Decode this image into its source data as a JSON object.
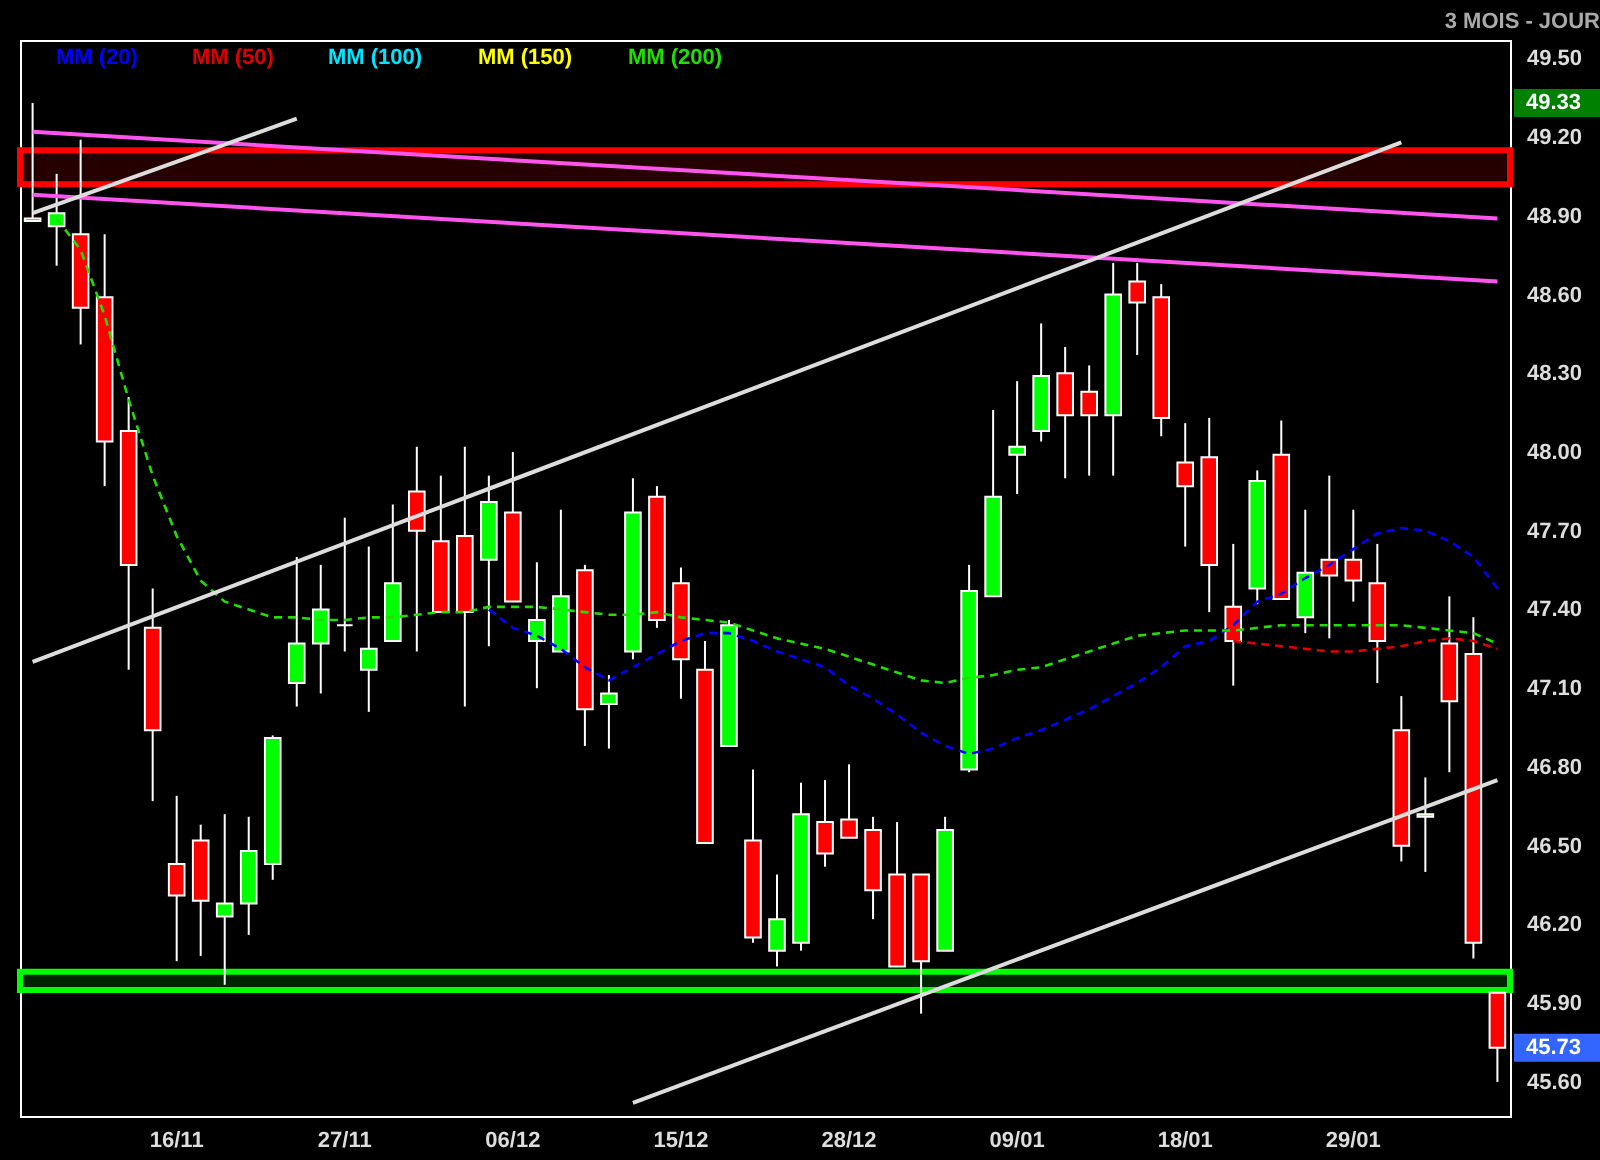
{
  "chart_data": {
    "type": "candlestick",
    "subtitle": "3 MOIS - JOUR",
    "categories": [
      null,
      null,
      null,
      null,
      null,
      null,
      "16/11",
      null,
      null,
      null,
      null,
      null,
      null,
      "27/11",
      null,
      null,
      null,
      null,
      null,
      null,
      "06/12",
      null,
      null,
      null,
      null,
      null,
      null,
      "15/12",
      null,
      null,
      null,
      null,
      null,
      null,
      "28/12",
      null,
      null,
      null,
      null,
      null,
      null,
      "09/01",
      null,
      null,
      null,
      null,
      null,
      null,
      "18/01",
      null,
      null,
      null,
      null,
      null,
      null,
      "29/01",
      null,
      null,
      null,
      null,
      null,
      null
    ],
    "ohlc": [
      [
        48.89,
        49.33,
        48.88,
        48.88
      ],
      [
        48.86,
        49.06,
        48.71,
        48.91
      ],
      [
        48.83,
        49.19,
        48.41,
        48.55
      ],
      [
        48.59,
        48.83,
        47.87,
        48.04
      ],
      [
        48.08,
        48.21,
        47.17,
        47.57
      ],
      [
        47.33,
        47.48,
        46.67,
        46.94
      ],
      [
        46.43,
        46.69,
        46.06,
        46.31
      ],
      [
        46.52,
        46.58,
        46.08,
        46.29
      ],
      [
        46.23,
        46.62,
        45.97,
        46.28
      ],
      [
        46.28,
        46.61,
        46.16,
        46.48
      ],
      [
        46.43,
        46.92,
        46.37,
        46.91
      ],
      [
        47.12,
        47.6,
        47.03,
        47.27
      ],
      [
        47.27,
        47.57,
        47.08,
        47.4
      ],
      [
        47.34,
        47.75,
        47.24,
        47.34
      ],
      [
        47.17,
        47.64,
        47.01,
        47.25
      ],
      [
        47.28,
        47.8,
        47.28,
        47.5
      ],
      [
        47.85,
        48.02,
        47.24,
        47.7
      ],
      [
        47.66,
        47.91,
        47.39,
        47.39
      ],
      [
        47.68,
        48.02,
        47.03,
        47.39
      ],
      [
        47.59,
        47.91,
        47.26,
        47.81
      ],
      [
        47.77,
        48.0,
        47.43,
        47.43
      ],
      [
        47.28,
        47.58,
        47.1,
        47.36
      ],
      [
        47.24,
        47.78,
        47.24,
        47.45
      ],
      [
        47.55,
        47.57,
        46.88,
        47.02
      ],
      [
        47.04,
        47.15,
        46.87,
        47.08
      ],
      [
        47.24,
        47.9,
        47.21,
        47.77
      ],
      [
        47.83,
        47.87,
        47.33,
        47.36
      ],
      [
        47.5,
        47.56,
        47.06,
        47.21
      ],
      [
        47.17,
        47.28,
        46.51,
        46.51
      ],
      [
        46.88,
        47.36,
        46.88,
        47.34
      ],
      [
        46.52,
        46.79,
        46.13,
        46.15
      ],
      [
        46.1,
        46.39,
        46.04,
        46.22
      ],
      [
        46.13,
        46.74,
        46.1,
        46.62
      ],
      [
        46.59,
        46.75,
        46.42,
        46.47
      ],
      [
        46.6,
        46.81,
        46.53,
        46.53
      ],
      [
        46.56,
        46.61,
        46.22,
        46.33
      ],
      [
        46.39,
        46.59,
        46.04,
        46.04
      ],
      [
        46.39,
        46.39,
        45.86,
        46.06
      ],
      [
        46.1,
        46.61,
        46.1,
        46.56
      ],
      [
        46.79,
        47.57,
        46.78,
        47.47
      ],
      [
        47.45,
        48.16,
        47.45,
        47.83
      ],
      [
        47.99,
        48.27,
        47.84,
        48.02
      ],
      [
        48.08,
        48.49,
        48.04,
        48.29
      ],
      [
        48.3,
        48.4,
        47.9,
        48.14
      ],
      [
        48.23,
        48.33,
        47.91,
        48.14
      ],
      [
        48.14,
        48.72,
        47.91,
        48.6
      ],
      [
        48.65,
        48.72,
        48.37,
        48.57
      ],
      [
        48.59,
        48.64,
        48.06,
        48.13
      ],
      [
        47.96,
        48.11,
        47.64,
        47.87
      ],
      [
        47.98,
        48.13,
        47.39,
        47.57
      ],
      [
        47.41,
        47.65,
        47.11,
        47.28
      ],
      [
        47.48,
        47.93,
        47.42,
        47.89
      ],
      [
        47.99,
        48.12,
        47.44,
        47.44
      ],
      [
        47.37,
        47.78,
        47.31,
        47.54
      ],
      [
        47.59,
        47.91,
        47.29,
        47.53
      ],
      [
        47.59,
        47.78,
        47.43,
        47.51
      ],
      [
        47.5,
        47.65,
        47.12,
        47.28
      ],
      [
        46.94,
        47.07,
        46.44,
        46.5
      ],
      [
        46.61,
        46.76,
        46.4,
        46.62
      ],
      [
        47.27,
        47.45,
        46.78,
        47.05
      ],
      [
        47.23,
        47.37,
        46.07,
        46.13
      ],
      [
        45.94,
        45.94,
        45.6,
        45.73
      ]
    ],
    "series": [
      {
        "name": "MM (20)",
        "type": "line",
        "color": "#0000ff",
        "line_style": "dashed",
        "values": [
          null,
          null,
          null,
          null,
          null,
          null,
          null,
          null,
          null,
          null,
          null,
          null,
          null,
          null,
          null,
          null,
          null,
          null,
          null,
          47.4,
          47.33,
          47.3,
          47.25,
          47.18,
          47.13,
          47.18,
          47.23,
          47.28,
          47.31,
          47.31,
          47.28,
          47.24,
          47.21,
          47.18,
          47.11,
          47.06,
          47.0,
          46.93,
          46.88,
          46.85,
          46.87,
          46.91,
          46.94,
          46.98,
          47.02,
          47.07,
          47.12,
          47.18,
          47.26,
          47.28,
          47.34,
          47.43,
          47.46,
          47.52,
          47.57,
          47.63,
          47.69,
          47.71,
          47.7,
          47.66,
          47.6,
          47.48
        ]
      },
      {
        "name": "MM (50)",
        "type": "line",
        "color": "#dd0000",
        "line_style": "dashed",
        "values": [
          null,
          null,
          null,
          null,
          null,
          null,
          null,
          null,
          null,
          null,
          null,
          null,
          null,
          null,
          null,
          null,
          null,
          null,
          null,
          null,
          null,
          null,
          null,
          null,
          null,
          null,
          null,
          null,
          null,
          null,
          null,
          null,
          null,
          null,
          null,
          null,
          null,
          null,
          null,
          null,
          null,
          null,
          null,
          null,
          null,
          null,
          null,
          null,
          null,
          null,
          47.28,
          47.27,
          47.26,
          47.25,
          47.24,
          47.24,
          47.25,
          47.26,
          47.28,
          47.29,
          47.28,
          47.25
        ]
      },
      {
        "name": "MM (100)",
        "type": "line",
        "color": "#00e5ff",
        "line_style": "dashed",
        "values": [
          null,
          null,
          null,
          null,
          null,
          null,
          null,
          null,
          null,
          null,
          null,
          null,
          null,
          null,
          null,
          null,
          null,
          null,
          null,
          null,
          null,
          null,
          null,
          null,
          null,
          null,
          null,
          null,
          null,
          null,
          null,
          null,
          null,
          null,
          null,
          null,
          null,
          null,
          null,
          null,
          null,
          null,
          null,
          null,
          null,
          null,
          null,
          null,
          null,
          null,
          null,
          null,
          null,
          null,
          null,
          null,
          null,
          null,
          null,
          null,
          null,
          null
        ]
      },
      {
        "name": "MM (150)",
        "type": "line",
        "color": "#ffff00",
        "line_style": "dashed",
        "values": [
          null,
          null,
          null,
          null,
          null,
          null,
          null,
          null,
          null,
          null,
          null,
          null,
          null,
          null,
          null,
          null,
          null,
          null,
          null,
          null,
          null,
          null,
          null,
          null,
          null,
          null,
          null,
          null,
          null,
          null,
          null,
          null,
          null,
          null,
          null,
          null,
          null,
          null,
          null,
          null,
          null,
          null,
          null,
          null,
          null,
          null,
          null,
          null,
          null,
          null,
          null,
          null,
          null,
          null,
          null,
          null,
          null,
          null,
          null,
          null,
          null,
          null
        ]
      },
      {
        "name": "MM (200)",
        "type": "line",
        "color": "#22dd00",
        "line_style": "dashed",
        "values": [
          null,
          48.89,
          48.77,
          48.52,
          48.2,
          47.91,
          47.68,
          47.51,
          47.43,
          47.4,
          47.37,
          47.37,
          47.36,
          47.36,
          47.37,
          47.37,
          47.38,
          47.39,
          47.39,
          47.41,
          47.41,
          47.41,
          47.4,
          47.39,
          47.38,
          47.38,
          47.39,
          47.37,
          47.36,
          47.35,
          47.32,
          47.29,
          47.27,
          47.25,
          47.22,
          47.19,
          47.16,
          47.13,
          47.12,
          47.14,
          47.15,
          47.17,
          47.18,
          47.21,
          47.24,
          47.27,
          47.3,
          47.31,
          47.32,
          47.32,
          47.32,
          47.33,
          47.34,
          47.34,
          47.34,
          47.34,
          47.34,
          47.34,
          47.33,
          47.32,
          47.31,
          47.27
        ]
      },
      {
        "type": "line",
        "color": "#ff55ee",
        "line_style": "solid",
        "values": [
          49.22,
          null,
          null,
          null,
          null,
          null,
          null,
          null,
          null,
          null,
          null,
          null,
          null,
          null,
          null,
          null,
          null,
          null,
          null,
          null,
          null,
          null,
          null,
          null,
          null,
          null,
          null,
          null,
          null,
          null,
          null,
          null,
          null,
          null,
          null,
          null,
          null,
          null,
          null,
          null,
          null,
          null,
          null,
          null,
          null,
          null,
          null,
          null,
          null,
          null,
          null,
          null,
          null,
          null,
          null,
          null,
          null,
          null,
          null,
          null,
          null,
          48.89
        ]
      },
      {
        "type": "line",
        "color": "#ff55ee",
        "line_style": "solid",
        "values": [
          48.98,
          null,
          null,
          null,
          null,
          null,
          null,
          null,
          null,
          null,
          null,
          null,
          null,
          null,
          null,
          null,
          null,
          null,
          null,
          null,
          null,
          null,
          null,
          null,
          null,
          null,
          null,
          null,
          null,
          null,
          null,
          null,
          null,
          null,
          null,
          null,
          null,
          null,
          null,
          null,
          null,
          null,
          null,
          null,
          null,
          null,
          null,
          null,
          null,
          null,
          null,
          null,
          null,
          null,
          null,
          null,
          null,
          null,
          null,
          null,
          null,
          48.65
        ]
      },
      {
        "type": "line",
        "color": "#dddddd",
        "line_style": "solid",
        "values": [
          47.2,
          null,
          null,
          null,
          null,
          null,
          null,
          null,
          null,
          null,
          null,
          null,
          null,
          null,
          null,
          null,
          null,
          null,
          null,
          null,
          null,
          null,
          null,
          null,
          null,
          null,
          null,
          null,
          null,
          null,
          null,
          null,
          null,
          null,
          null,
          null,
          null,
          null,
          null,
          null,
          null,
          null,
          null,
          null,
          null,
          null,
          null,
          null,
          null,
          null,
          null,
          null,
          null,
          null,
          null,
          null,
          null,
          49.18,
          null,
          null,
          null,
          null
        ]
      },
      {
        "type": "line",
        "color": "#dddddd",
        "line_style": "solid",
        "values": [
          48.91,
          null,
          null,
          null,
          null,
          null,
          null,
          null,
          null,
          null,
          null,
          49.27,
          null,
          null,
          null,
          null,
          null,
          null,
          null,
          null,
          null,
          null,
          null,
          null,
          null,
          null,
          null,
          null,
          null,
          null,
          null,
          null,
          null,
          null,
          null,
          null,
          null,
          null,
          null,
          null,
          null,
          null,
          null,
          null,
          null,
          null,
          null,
          null,
          null,
          null,
          null,
          null,
          null,
          null,
          null,
          null,
          null,
          null,
          null,
          null,
          null,
          null
        ]
      },
      {
        "type": "line",
        "color": "#dddddd",
        "line_style": "solid",
        "values": [
          null,
          null,
          null,
          null,
          null,
          null,
          null,
          null,
          null,
          null,
          null,
          null,
          null,
          null,
          null,
          null,
          null,
          null,
          null,
          null,
          null,
          null,
          null,
          null,
          null,
          45.52,
          null,
          null,
          null,
          null,
          null,
          null,
          null,
          null,
          null,
          null,
          null,
          null,
          null,
          null,
          null,
          null,
          null,
          null,
          null,
          null,
          null,
          null,
          null,
          null,
          null,
          null,
          null,
          null,
          null,
          null,
          null,
          null,
          null,
          null,
          null,
          46.75
        ]
      }
    ],
    "bands": [
      {
        "axis": "y",
        "from": 49.02,
        "to": 49.15,
        "color": "#ff0000"
      },
      {
        "axis": "y",
        "from": 45.95,
        "to": 46.02,
        "color": "#00ff00"
      }
    ],
    "annotations": [
      {
        "text": "49.33",
        "y": 49.33
      },
      {
        "text": "45.73",
        "y": 45.73
      }
    ],
    "ylim": [
      45.47,
      49.57
    ],
    "yticks": [
      {
        "value": 45.6,
        "label": "45.60"
      },
      {
        "value": 45.9,
        "label": "45.90"
      },
      {
        "value": 46.2,
        "label": "46.20"
      },
      {
        "value": 46.5,
        "label": "46.50"
      },
      {
        "value": 46.8,
        "label": "46.80"
      },
      {
        "value": 47.1,
        "label": "47.10"
      },
      {
        "value": 47.4,
        "label": "47.40"
      },
      {
        "value": 47.7,
        "label": "47.70"
      },
      {
        "value": 48.0,
        "label": "48.00"
      },
      {
        "value": 48.3,
        "label": "48.30"
      },
      {
        "value": 48.6,
        "label": "48.60"
      },
      {
        "value": 48.9,
        "label": "48.90"
      },
      {
        "value": 49.2,
        "label": "49.20"
      },
      {
        "value": 49.5,
        "label": "49.50"
      }
    ],
    "legend": "top left",
    "marker": "none"
  }
}
